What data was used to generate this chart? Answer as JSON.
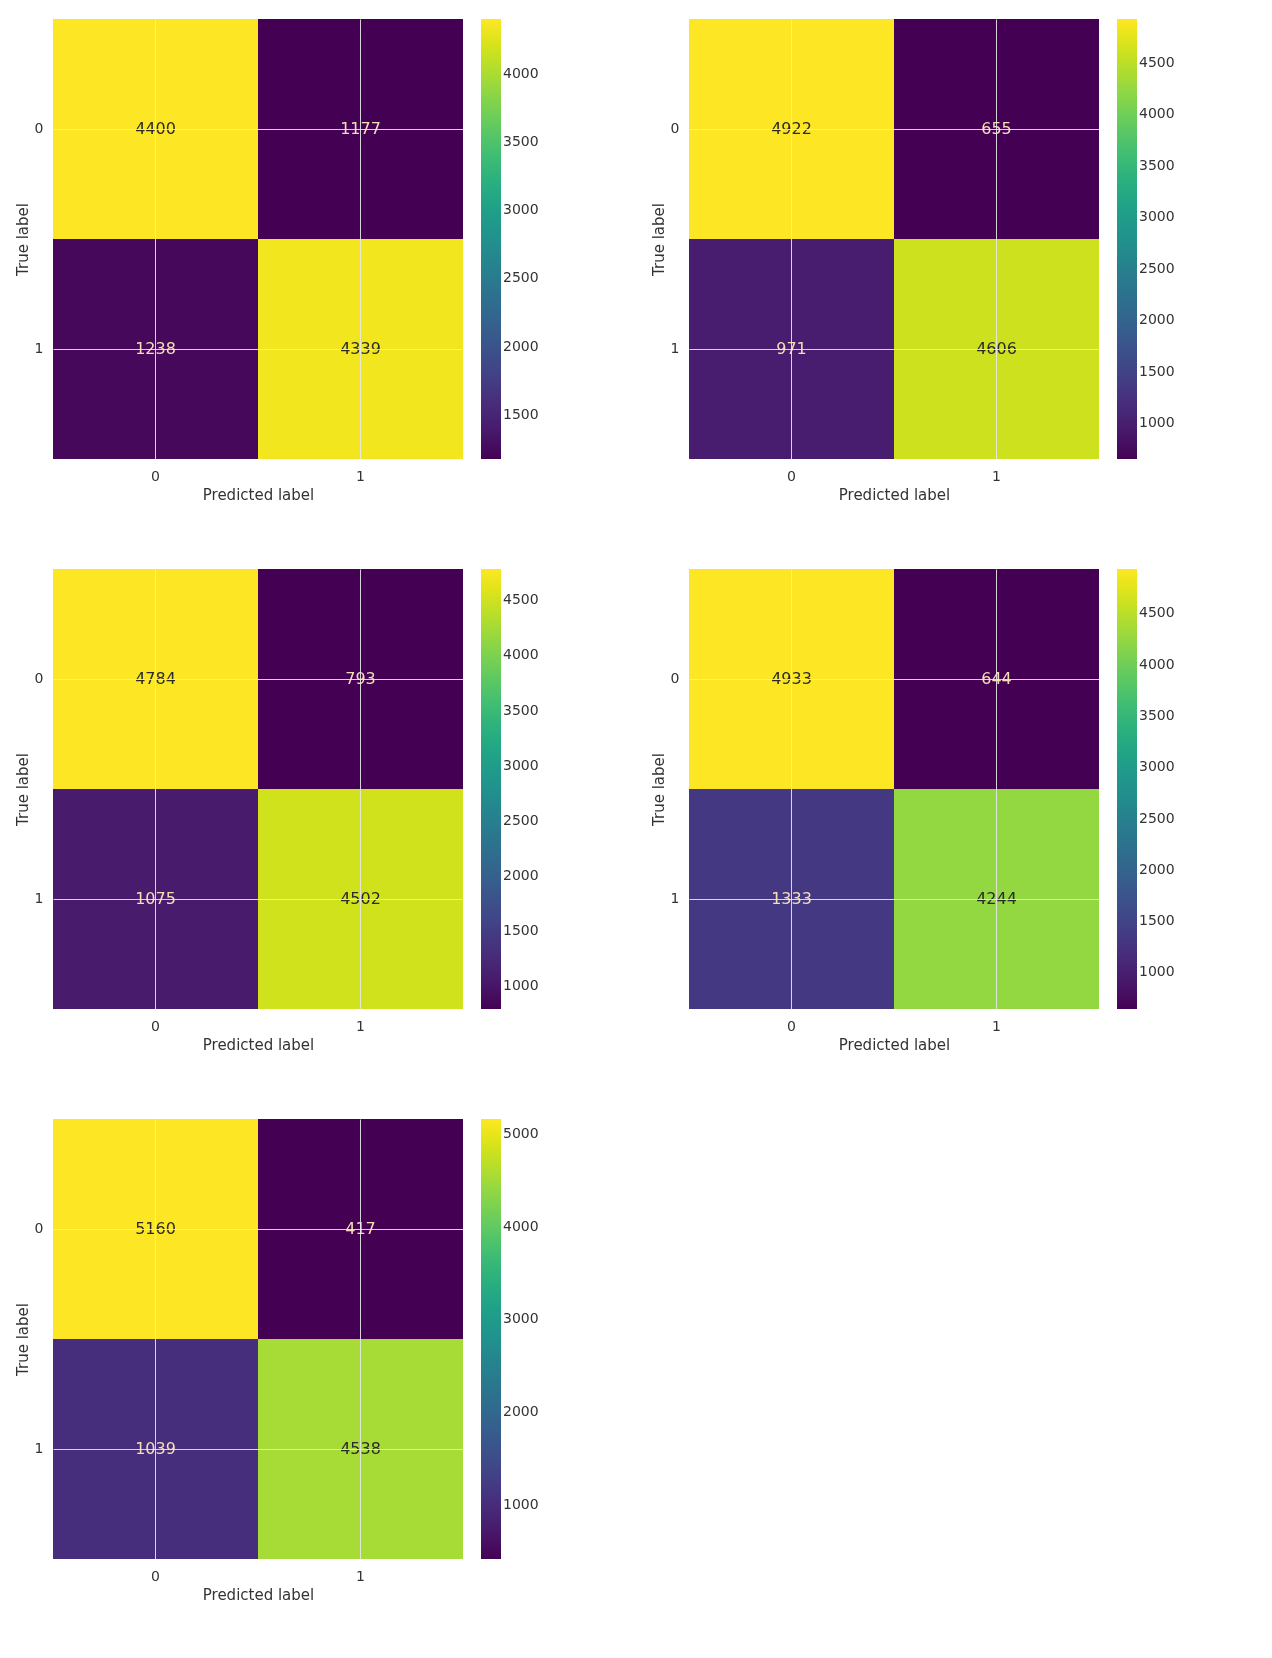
{
  "chart_data": [
    {
      "type": "heatmap",
      "xlabel": "Predicted label",
      "ylabel": "True label",
      "categories": [
        "0",
        "1"
      ],
      "y_categories": [
        "0",
        "1"
      ],
      "cells": [
        [
          4400,
          1177
        ],
        [
          1238,
          4339
        ]
      ],
      "clim": [
        1177,
        4400
      ],
      "cticks": [
        1500,
        2000,
        2500,
        3000,
        3500,
        4000
      ],
      "data_labels": true,
      "grid": true
    },
    {
      "type": "heatmap",
      "xlabel": "Predicted label",
      "ylabel": "True label",
      "categories": [
        "0",
        "1"
      ],
      "y_categories": [
        "0",
        "1"
      ],
      "cells": [
        [
          4922,
          655
        ],
        [
          971,
          4606
        ]
      ],
      "clim": [
        655,
        4922
      ],
      "cticks": [
        1000,
        1500,
        2000,
        2500,
        3000,
        3500,
        4000,
        4500
      ],
      "data_labels": true,
      "grid": true
    },
    {
      "type": "heatmap",
      "xlabel": "Predicted label",
      "ylabel": "True label",
      "categories": [
        "0",
        "1"
      ],
      "y_categories": [
        "0",
        "1"
      ],
      "cells": [
        [
          4784,
          793
        ],
        [
          1075,
          4502
        ]
      ],
      "clim": [
        793,
        4784
      ],
      "cticks": [
        1000,
        1500,
        2000,
        2500,
        3000,
        3500,
        4000,
        4500
      ],
      "data_labels": true,
      "grid": true
    },
    {
      "type": "heatmap",
      "xlabel": "Predicted label",
      "ylabel": "True label",
      "categories": [
        "0",
        "1"
      ],
      "y_categories": [
        "0",
        "1"
      ],
      "cells": [
        [
          4933,
          644
        ],
        [
          1333,
          4244
        ]
      ],
      "clim": [
        644,
        4933
      ],
      "cticks": [
        1000,
        1500,
        2000,
        2500,
        3000,
        3500,
        4000,
        4500
      ],
      "data_labels": true,
      "grid": true
    },
    {
      "type": "heatmap",
      "xlabel": "Predicted label",
      "ylabel": "True label",
      "categories": [
        "0",
        "1"
      ],
      "y_categories": [
        "0",
        "1"
      ],
      "cells": [
        [
          5160,
          417
        ],
        [
          1039,
          4538
        ]
      ],
      "clim": [
        417,
        5160
      ],
      "cticks": [
        1000,
        2000,
        3000,
        4000,
        5000
      ],
      "data_labels": true,
      "grid": true
    }
  ]
}
